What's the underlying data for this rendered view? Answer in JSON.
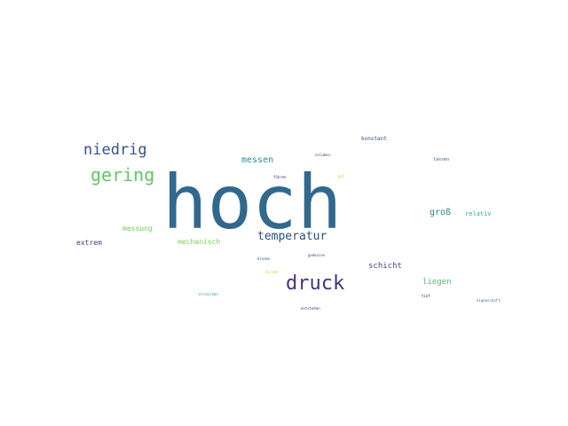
{
  "words": [
    {
      "text": "hoch",
      "color": "#31688e"
    },
    {
      "text": "druck",
      "color": "#46337e"
    },
    {
      "text": "gering",
      "color": "#5ec962"
    },
    {
      "text": "niedrig",
      "color": "#3b528b"
    },
    {
      "text": "temperatur",
      "color": "#2c4f7f"
    },
    {
      "text": "messen",
      "color": "#21918c"
    },
    {
      "text": "groß",
      "color": "#24868e"
    },
    {
      "text": "schicht",
      "color": "#3f4788"
    },
    {
      "text": "liegen",
      "color": "#4ac16d"
    },
    {
      "text": "mechanisch",
      "color": "#7ad151"
    },
    {
      "text": "messung",
      "color": "#6ece58"
    },
    {
      "text": "extrem",
      "color": "#443983"
    },
    {
      "text": "relativ",
      "color": "#2db27d"
    },
    {
      "text": "konstant",
      "color": "#3e4989"
    },
    {
      "text": "lassen",
      "color": "#38598c"
    },
    {
      "text": "volumen",
      "color": "#414487"
    },
    {
      "text": "führen",
      "color": "#482475"
    },
    {
      "text": "gut",
      "color": "#b5de2b"
    },
    {
      "text": "binden",
      "color": "#33638d"
    },
    {
      "text": "gemessen",
      "color": "#3a548c"
    },
    {
      "text": "direkt",
      "color": "#b8de29"
    },
    {
      "text": "tief",
      "color": "#440154"
    },
    {
      "text": "eigenschaft",
      "color": "#2a788e"
    },
    {
      "text": "erreichen",
      "color": "#20a486"
    },
    {
      "text": "entstehen",
      "color": "#472c7a"
    }
  ]
}
